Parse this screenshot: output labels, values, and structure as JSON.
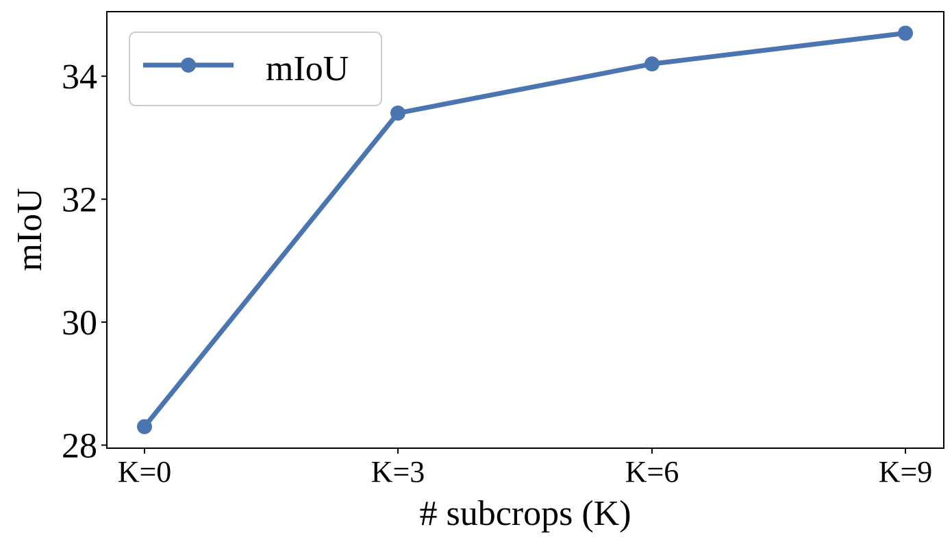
{
  "chart_data": {
    "type": "line",
    "xlabel": "# subcrops (K)",
    "ylabel": "mIoU",
    "categories": [
      "K=0",
      "K=3",
      "K=6",
      "K=9"
    ],
    "series": [
      {
        "name": "mIoU",
        "values": [
          28.3,
          33.4,
          34.2,
          34.7
        ]
      }
    ],
    "ylim": [
      27.95,
      35.05
    ],
    "yticks": [
      28,
      30,
      32,
      34
    ],
    "grid": false,
    "legend": "top-left",
    "colors": {
      "series": "#4a75b0",
      "legend_border": "#cccccc"
    }
  }
}
